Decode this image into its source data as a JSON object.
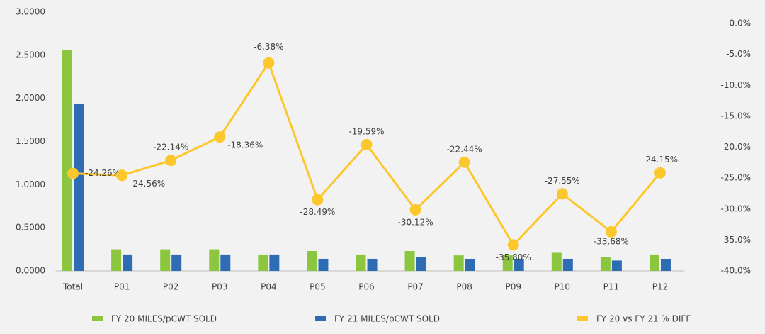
{
  "chart_data": {
    "type": "bar_line",
    "categories": [
      "Total",
      "P01",
      "P02",
      "P03",
      "P04",
      "P05",
      "P06",
      "P07",
      "P08",
      "P09",
      "P10",
      "P11",
      "P12"
    ],
    "series": [
      {
        "name": "FY 20 MILES/pCWT SOLD",
        "type": "bar",
        "color": "#8cc63f",
        "values": [
          2.56,
          0.25,
          0.25,
          0.25,
          0.19,
          0.23,
          0.19,
          0.23,
          0.18,
          0.18,
          0.21,
          0.16,
          0.19
        ]
      },
      {
        "name": "FY 21 MILES/pCWT SOLD",
        "type": "bar",
        "color": "#2e6db4",
        "values": [
          1.94,
          0.19,
          0.19,
          0.19,
          0.19,
          0.14,
          0.14,
          0.16,
          0.14,
          0.14,
          0.14,
          0.12,
          0.14
        ]
      },
      {
        "name": "FY 20 vs FY 21 % DIFF",
        "type": "line",
        "axis": "y2",
        "color": "#fcc72c",
        "values": [
          -24.26,
          -24.56,
          -22.14,
          -18.36,
          -6.38,
          -28.49,
          -19.59,
          -30.12,
          -22.44,
          -35.8,
          -27.55,
          -33.68,
          -24.15
        ],
        "value_labels": [
          "-24.26%",
          "-24.56%",
          "-22.14%",
          "-18.36%",
          "-6.38%",
          "-28.49%",
          "-19.59%",
          "-30.12%",
          "-22.44%",
          "-35.80%",
          "-27.55%",
          "-33.68%",
          "-24.15%"
        ]
      }
    ],
    "ylim": [
      0,
      3
    ],
    "yticks": [
      {
        "value": 0,
        "label": "0.0000"
      },
      {
        "value": 0.5,
        "label": "0.5000"
      },
      {
        "value": 1,
        "label": "1.0000"
      },
      {
        "value": 1.5,
        "label": "1.5000"
      },
      {
        "value": 2,
        "label": "2.0000"
      },
      {
        "value": 2.5,
        "label": "2.5000"
      },
      {
        "value": 3,
        "label": "3.0000"
      }
    ],
    "y2lim": [
      -40,
      0
    ],
    "y2ticks": [
      {
        "value": -40,
        "label": "-40.0%"
      },
      {
        "value": -35,
        "label": "-35.0%"
      },
      {
        "value": -30,
        "label": "-30.0%"
      },
      {
        "value": -25,
        "label": "-25.0%"
      },
      {
        "value": -20,
        "label": "-20.0%"
      },
      {
        "value": -15,
        "label": "-15.0%"
      },
      {
        "value": -10,
        "label": "-10.0%"
      },
      {
        "value": -5,
        "label": "-5.0%"
      },
      {
        "value": 0,
        "label": "0.0%"
      }
    ],
    "legend": "bottom"
  }
}
